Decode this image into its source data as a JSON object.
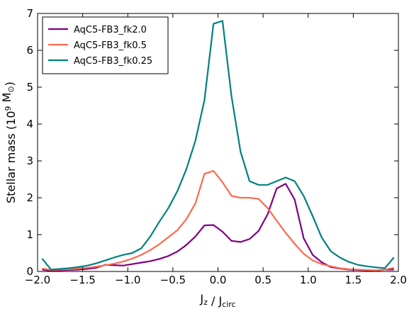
{
  "chart_data": {
    "type": "line",
    "title": "",
    "xlabel": {
      "main": "J",
      "sub1": "z",
      "mid": " / J",
      "sub2": "circ"
    },
    "ylabel": {
      "main": "Stellar mass (10",
      "sup": "9",
      "mid": " M",
      "sub": "⊙",
      "end": ")"
    },
    "xlim": [
      -2.0,
      2.0
    ],
    "ylim": [
      0,
      7
    ],
    "x_ticks": [
      -2.0,
      -1.5,
      -1.0,
      -0.5,
      0.0,
      0.5,
      1.0,
      1.5,
      2.0
    ],
    "x_tick_labels": [
      "−2.0",
      "−1.5",
      "−1.0",
      "−0.5",
      "0.0",
      "0.5",
      "1.0",
      "1.5",
      "2.0"
    ],
    "y_ticks": [
      0,
      1,
      2,
      3,
      4,
      5,
      6,
      7
    ],
    "y_tick_labels": [
      "0",
      "1",
      "2",
      "3",
      "4",
      "5",
      "6",
      "7"
    ],
    "grid": false,
    "legend_position": "top-left",
    "x": [
      -1.95,
      -1.85,
      -1.75,
      -1.65,
      -1.55,
      -1.45,
      -1.35,
      -1.25,
      -1.15,
      -1.05,
      -0.95,
      -0.85,
      -0.75,
      -0.65,
      -0.55,
      -0.45,
      -0.35,
      -0.25,
      -0.15,
      -0.05,
      0.05,
      0.15,
      0.25,
      0.35,
      0.45,
      0.55,
      0.65,
      0.75,
      0.85,
      0.95,
      1.05,
      1.15,
      1.25,
      1.35,
      1.45,
      1.55,
      1.65,
      1.75,
      1.85,
      1.95
    ],
    "series": [
      {
        "name": "AqC5-FB3_fk2.0",
        "color": "#800080",
        "values": [
          0.05,
          0.02,
          0.03,
          0.04,
          0.05,
          0.07,
          0.1,
          0.18,
          0.17,
          0.16,
          0.2,
          0.24,
          0.28,
          0.34,
          0.42,
          0.54,
          0.72,
          0.95,
          1.25,
          1.26,
          1.08,
          0.83,
          0.8,
          0.88,
          1.1,
          1.55,
          2.25,
          2.38,
          1.95,
          0.9,
          0.45,
          0.25,
          0.12,
          0.08,
          0.05,
          0.04,
          0.03,
          0.02,
          0.05,
          0.05
        ]
      },
      {
        "name": "AqC5-FB3_fk0.5",
        "color": "#ff6a4d",
        "values": [
          0.08,
          0.04,
          0.05,
          0.06,
          0.08,
          0.1,
          0.13,
          0.17,
          0.21,
          0.27,
          0.35,
          0.45,
          0.58,
          0.74,
          0.93,
          1.12,
          1.42,
          1.85,
          2.65,
          2.73,
          2.42,
          2.05,
          2.0,
          2.0,
          1.97,
          1.72,
          1.38,
          1.05,
          0.75,
          0.48,
          0.3,
          0.2,
          0.14,
          0.09,
          0.06,
          0.05,
          0.04,
          0.03,
          0.05,
          0.1
        ]
      },
      {
        "name": "AqC5-FB3_fk0.25",
        "color": "#008080",
        "values": [
          0.35,
          0.05,
          0.07,
          0.09,
          0.12,
          0.16,
          0.22,
          0.3,
          0.38,
          0.45,
          0.5,
          0.63,
          0.95,
          1.35,
          1.72,
          2.18,
          2.78,
          3.55,
          4.65,
          6.72,
          6.8,
          4.75,
          3.25,
          2.45,
          2.35,
          2.35,
          2.45,
          2.55,
          2.45,
          2.05,
          1.5,
          0.92,
          0.55,
          0.38,
          0.26,
          0.18,
          0.14,
          0.11,
          0.09,
          0.38
        ]
      }
    ]
  }
}
